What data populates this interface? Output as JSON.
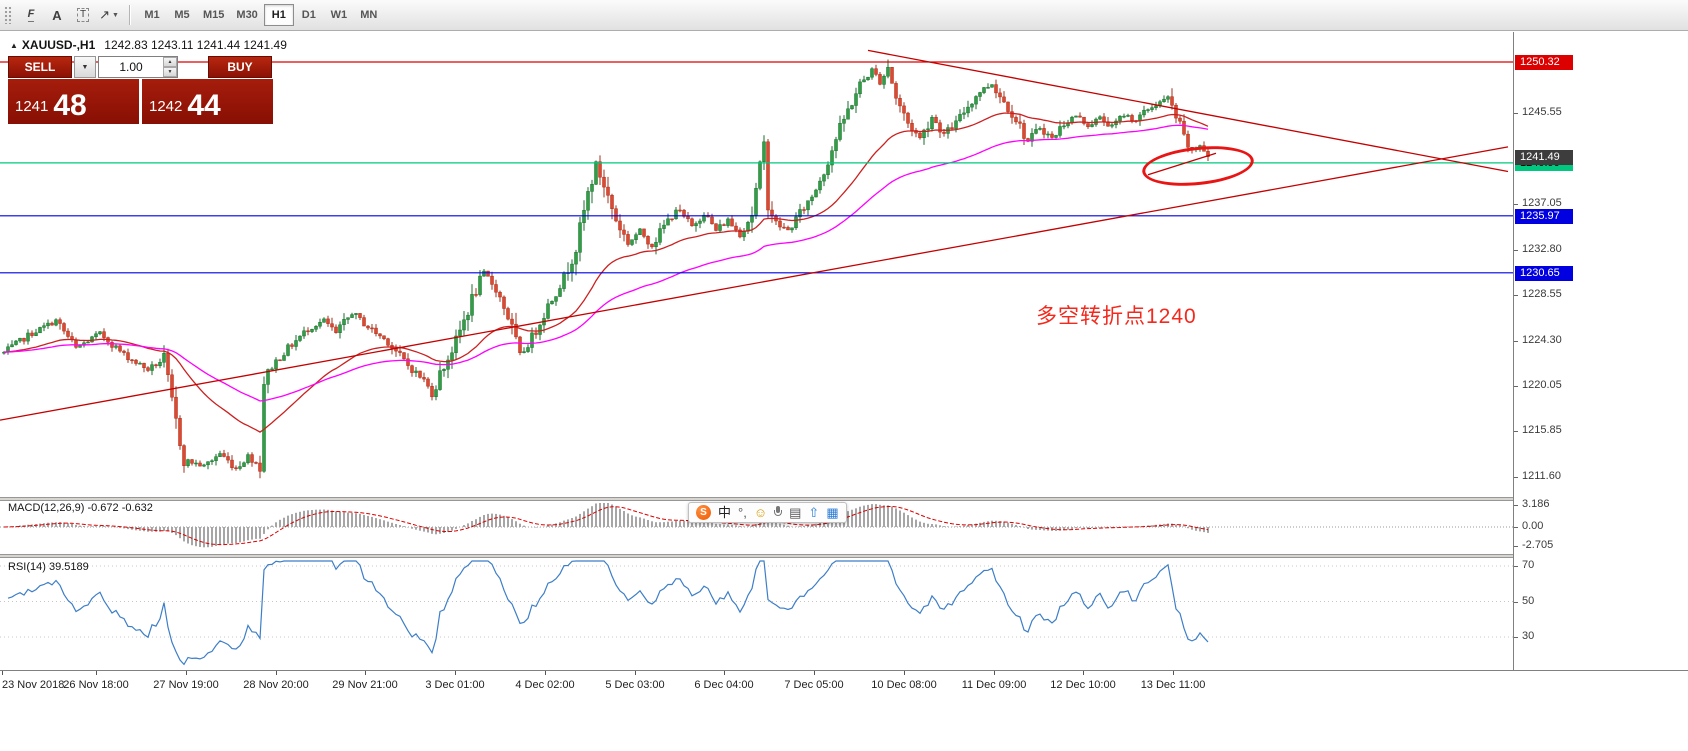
{
  "toolbar": {
    "tools": [
      {
        "name": "fibonacci-tool",
        "glyph": "F"
      },
      {
        "name": "text-tool",
        "glyph": "A"
      },
      {
        "name": "text-label-tool",
        "glyph": "T"
      },
      {
        "name": "arrows-tool",
        "glyph": "↗"
      }
    ],
    "timeframes": [
      "M1",
      "M5",
      "M15",
      "M30",
      "H1",
      "D1",
      "W1",
      "MN"
    ],
    "active_timeframe": "H1"
  },
  "chart": {
    "header": {
      "symbol": "XAUUSD-,H1",
      "ohlc": "1242.83 1243.11 1241.44 1241.49"
    },
    "trade_panel": {
      "sell_label": "SELL",
      "buy_label": "BUY",
      "volume": "1.00",
      "sell_price": {
        "big": "1241",
        "pips": "48"
      },
      "buy_price": {
        "big": "1242",
        "pips": "44"
      }
    },
    "annotation_text": "多空转折点1240"
  },
  "ime_bar": {
    "icons": [
      {
        "name": "sogou-logo-icon",
        "glyph": "S"
      },
      {
        "name": "chinese-mode-icon",
        "glyph": "中"
      },
      {
        "name": "punctuation-mode-icon",
        "glyph": "°,"
      },
      {
        "name": "emoji-picker-icon",
        "glyph": "☺"
      },
      {
        "name": "voice-input-icon",
        "glyph": "mic"
      },
      {
        "name": "soft-keyboard-icon",
        "glyph": "▤"
      },
      {
        "name": "screenshot-icon",
        "glyph": "⇧"
      },
      {
        "name": "toolbox-icon",
        "glyph": "▦"
      }
    ]
  },
  "chart_data": {
    "type": "candlestick",
    "symbol": "XAUUSD-",
    "timeframe": "H1",
    "ohlc": {
      "open": 1242.83,
      "high": 1243.11,
      "low": 1241.44,
      "close": 1241.49
    },
    "y_axis": {
      "ticks": [
        "1245.55",
        "1237.05",
        "1232.80",
        "1228.55",
        "1224.30",
        "1220.05",
        "1215.85",
        "1211.60"
      ]
    },
    "level_lines": [
      {
        "price": 1250.32,
        "color": "#dd0000",
        "box_bg": "#dd0000",
        "box_fg": "#ffffff"
      },
      {
        "price": 1240.9,
        "color": "#00c87e",
        "box_bg": "#00c87e",
        "box_fg": "#000000"
      },
      {
        "price": 1235.97,
        "color": "#0000e0",
        "box_bg": "#0000e0",
        "box_fg": "#ffffff"
      },
      {
        "price": 1230.65,
        "color": "#0000e0",
        "box_bg": "#0000e0",
        "box_fg": "#ffffff"
      }
    ],
    "current_price": {
      "value": 1241.49,
      "box_bg": "#3d3d3d",
      "box_fg": "#ffffff"
    },
    "candle_colors": {
      "up": "#2f9e44",
      "up_border": "#1b6e2d",
      "down": "#e0472f",
      "down_border": "#a5301d"
    },
    "moving_averages": [
      {
        "name": "fast-ma",
        "period": 34,
        "color": "#cc2020"
      },
      {
        "name": "slow-ma",
        "period": 72,
        "color": "#ff00ff"
      }
    ],
    "trendlines": [
      {
        "i1": -1,
        "p1": 1216.9,
        "i2": 376,
        "p2": 1242.4,
        "color": "#c40000"
      },
      {
        "i1": 216,
        "p1": 1251.4,
        "i2": 376,
        "p2": 1240.1,
        "color": "#c40000"
      },
      {
        "i1": 286,
        "p1": 1239.8,
        "i2": 303,
        "p2": 1241.8,
        "color": "#c40000"
      }
    ],
    "price_path": [
      [
        0,
        1223.2
      ],
      [
        6,
        1224.8
      ],
      [
        13,
        1226.2
      ],
      [
        18,
        1223.6
      ],
      [
        24,
        1225.0
      ],
      [
        30,
        1223.0
      ],
      [
        36,
        1221.6
      ],
      [
        40,
        1222.6
      ],
      [
        42,
        1218.5
      ],
      [
        45,
        1213.2
      ],
      [
        50,
        1212.6
      ],
      [
        54,
        1213.8
      ],
      [
        58,
        1212.4
      ],
      [
        61,
        1213.6
      ],
      [
        64,
        1212.6
      ],
      [
        65,
        1220.5
      ],
      [
        67,
        1222.0
      ],
      [
        71,
        1223.6
      ],
      [
        76,
        1225.4
      ],
      [
        80,
        1226.2
      ],
      [
        83,
        1225.0
      ],
      [
        87,
        1226.9
      ],
      [
        91,
        1225.6
      ],
      [
        96,
        1224.2
      ],
      [
        101,
        1222.0
      ],
      [
        105,
        1220.6
      ],
      [
        107,
        1219.3
      ],
      [
        109,
        1221.2
      ],
      [
        113,
        1224.2
      ],
      [
        117,
        1228.2
      ],
      [
        120,
        1230.6
      ],
      [
        123,
        1229.2
      ],
      [
        126,
        1226.6
      ],
      [
        129,
        1222.9
      ],
      [
        132,
        1224.6
      ],
      [
        136,
        1227.6
      ],
      [
        140,
        1230.2
      ],
      [
        143,
        1233.0
      ],
      [
        146,
        1238.0
      ],
      [
        148,
        1240.8
      ],
      [
        150,
        1238.8
      ],
      [
        153,
        1235.6
      ],
      [
        156,
        1233.4
      ],
      [
        159,
        1234.6
      ],
      [
        162,
        1233.2
      ],
      [
        165,
        1235.0
      ],
      [
        168,
        1236.6
      ],
      [
        172,
        1235.0
      ],
      [
        175,
        1236.2
      ],
      [
        178,
        1234.6
      ],
      [
        181,
        1235.6
      ],
      [
        184,
        1234.2
      ],
      [
        187,
        1236.2
      ],
      [
        190,
        1242.5
      ],
      [
        191,
        1237.2
      ],
      [
        193,
        1235.2
      ],
      [
        196,
        1234.6
      ],
      [
        199,
        1236.2
      ],
      [
        202,
        1237.8
      ],
      [
        205,
        1240.2
      ],
      [
        208,
        1243.2
      ],
      [
        211,
        1245.8
      ],
      [
        214,
        1248.2
      ],
      [
        217,
        1249.6
      ],
      [
        219,
        1248.4
      ],
      [
        221,
        1249.9
      ],
      [
        223,
        1247.0
      ],
      [
        226,
        1244.6
      ],
      [
        229,
        1243.2
      ],
      [
        232,
        1245.2
      ],
      [
        235,
        1243.6
      ],
      [
        238,
        1244.6
      ],
      [
        241,
        1246.2
      ],
      [
        244,
        1247.6
      ],
      [
        247,
        1248.3
      ],
      [
        250,
        1246.6
      ],
      [
        253,
        1245.0
      ],
      [
        256,
        1242.9
      ],
      [
        259,
        1244.2
      ],
      [
        262,
        1243.2
      ],
      [
        265,
        1244.6
      ],
      [
        268,
        1245.3
      ],
      [
        271,
        1244.4
      ],
      [
        274,
        1245.1
      ],
      [
        277,
        1244.3
      ],
      [
        280,
        1245.4
      ],
      [
        283,
        1244.9
      ],
      [
        286,
        1245.9
      ],
      [
        289,
        1246.6
      ],
      [
        291,
        1246.9
      ],
      [
        293,
        1245.2
      ],
      [
        295,
        1243.2
      ],
      [
        297,
        1241.9
      ],
      [
        299,
        1242.6
      ],
      [
        301,
        1241.5
      ]
    ],
    "time_axis": [
      "23 Nov 2018",
      "26 Nov 18:00",
      "27 Nov 19:00",
      "28 Nov 20:00",
      "29 Nov 21:00",
      "3 Dec 01:00",
      "4 Dec 02:00",
      "5 Dec 03:00",
      "6 Dec 04:00",
      "7 Dec 05:00",
      "10 Dec 08:00",
      "11 Dec 09:00",
      "12 Dec 10:00",
      "13 Dec 11:00"
    ],
    "indicators": {
      "macd": {
        "label": "MACD(12,26,9) -0.672 -0.632",
        "fast": 12,
        "slow": 26,
        "signal": 9,
        "axis_ticks": [
          "3.186",
          "0.00",
          "-2.705"
        ],
        "histogram_color": "#a6a6a6",
        "signal_color": "#dd0000"
      },
      "rsi": {
        "label": "RSI(14) 39.5189",
        "period": 14,
        "value": 39.5189,
        "axis_ticks": [
          "70",
          "50",
          "30"
        ],
        "line_color": "#3d7ec8"
      }
    }
  }
}
